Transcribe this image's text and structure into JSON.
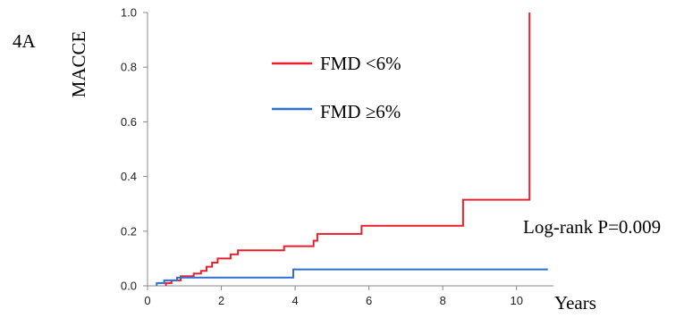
{
  "chart_data": {
    "type": "line",
    "step": true,
    "panel_label": "4A",
    "xlabel": "Years",
    "ylabel": "MACCE",
    "xlim": [
      0,
      11
    ],
    "ylim": [
      0,
      1.0
    ],
    "x_ticks": [
      0,
      2,
      4,
      6,
      8,
      10
    ],
    "y_ticks": [
      0.0,
      0.2,
      0.4,
      0.6,
      0.8,
      1.0
    ],
    "x_tick_labels": [
      "0",
      "2",
      "4",
      "6",
      "8",
      "10"
    ],
    "y_tick_labels": [
      "0.0",
      "0.2",
      "0.4",
      "0.6",
      "0.8",
      "1.0"
    ],
    "legend_position": "top-center",
    "annotation": "Log-rank P=0.009",
    "series": [
      {
        "name": "FMD <6%",
        "color": "#e8212e",
        "points": [
          [
            0.5,
            0
          ],
          [
            0.5,
            0.01
          ],
          [
            0.65,
            0.01
          ],
          [
            0.65,
            0.02
          ],
          [
            0.9,
            0.02
          ],
          [
            0.9,
            0.035
          ],
          [
            1.25,
            0.035
          ],
          [
            1.25,
            0.045
          ],
          [
            1.45,
            0.045
          ],
          [
            1.45,
            0.055
          ],
          [
            1.6,
            0.055
          ],
          [
            1.6,
            0.07
          ],
          [
            1.75,
            0.07
          ],
          [
            1.75,
            0.085
          ],
          [
            1.9,
            0.085
          ],
          [
            1.9,
            0.1
          ],
          [
            2.25,
            0.1
          ],
          [
            2.25,
            0.115
          ],
          [
            2.45,
            0.115
          ],
          [
            2.45,
            0.13
          ],
          [
            3.7,
            0.13
          ],
          [
            3.7,
            0.145
          ],
          [
            4.5,
            0.145
          ],
          [
            4.5,
            0.165
          ],
          [
            4.6,
            0.165
          ],
          [
            4.6,
            0.19
          ],
          [
            5.8,
            0.19
          ],
          [
            5.8,
            0.22
          ],
          [
            8.55,
            0.22
          ],
          [
            8.55,
            0.315
          ],
          [
            10.35,
            0.315
          ],
          [
            10.35,
            1.0
          ]
        ]
      },
      {
        "name": "FMD ≥6%",
        "color": "#2e6fd4",
        "points": [
          [
            0.25,
            0
          ],
          [
            0.25,
            0.01
          ],
          [
            0.45,
            0.01
          ],
          [
            0.45,
            0.02
          ],
          [
            0.8,
            0.02
          ],
          [
            0.8,
            0.03
          ],
          [
            3.95,
            0.03
          ],
          [
            3.95,
            0.06
          ],
          [
            10.85,
            0.06
          ]
        ]
      }
    ]
  }
}
